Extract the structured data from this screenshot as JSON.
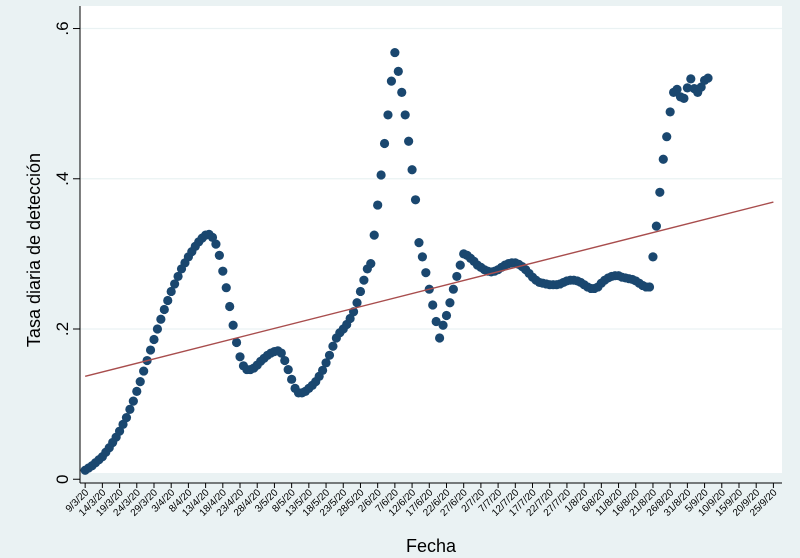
{
  "chart_data": {
    "type": "scatter",
    "title": "",
    "xlabel": "Fecha",
    "ylabel": "Tasa diaria de detección",
    "y_ticks": [
      {
        "value": 0.0,
        "label": "0"
      },
      {
        "value": 0.2,
        "label": ".2"
      },
      {
        "value": 0.4,
        "label": ".4"
      },
      {
        "value": 0.6,
        "label": ".6"
      }
    ],
    "ylim": [
      -0.005,
      0.63
    ],
    "xlim": [
      -1.5,
      202.5
    ],
    "grid": "horizontal",
    "x_tick_labels": [
      "9/3/20",
      "14/3/20",
      "19/3/20",
      "24/3/20",
      "29/3/20",
      "3/4/20",
      "8/4/20",
      "13/4/20",
      "18/4/20",
      "23/4/20",
      "28/4/20",
      "3/5/20",
      "8/5/20",
      "13/5/20",
      "18/5/20",
      "23/5/20",
      "28/5/20",
      "2/6/20",
      "7/6/20",
      "12/6/20",
      "17/6/20",
      "22/6/20",
      "27/6/20",
      "2/7/20",
      "7/7/20",
      "12/7/20",
      "17/7/20",
      "22/7/20",
      "27/7/20",
      "1/8/20",
      "6/8/20",
      "11/8/20",
      "16/8/20",
      "21/8/20",
      "26/8/20",
      "31/8/20",
      "5/9/20",
      "10/9/20",
      "15/9/20",
      "20/9/20",
      "25/9/20"
    ],
    "x_tick_step": 5,
    "series": [
      {
        "kind": "points",
        "color": "#1a476f",
        "x_start": 0,
        "values": [
          0.012,
          0.015,
          0.018,
          0.022,
          0.026,
          0.03,
          0.036,
          0.042,
          0.049,
          0.056,
          0.064,
          0.073,
          0.082,
          0.093,
          0.104,
          0.117,
          0.13,
          0.144,
          0.158,
          0.172,
          0.186,
          0.2,
          0.213,
          0.226,
          0.238,
          0.25,
          0.26,
          0.27,
          0.28,
          0.288,
          0.296,
          0.303,
          0.31,
          0.316,
          0.321,
          0.325,
          0.326,
          0.322,
          0.313,
          0.298,
          0.277,
          0.255,
          0.23,
          0.205,
          0.182,
          0.163,
          0.151,
          0.146,
          0.146,
          0.148,
          0.152,
          0.157,
          0.161,
          0.165,
          0.168,
          0.17,
          0.171,
          0.168,
          0.158,
          0.146,
          0.133,
          0.121,
          0.115,
          0.115,
          0.117,
          0.121,
          0.125,
          0.13,
          0.137,
          0.145,
          0.155,
          0.165,
          0.177,
          0.188,
          0.195,
          0.2,
          0.206,
          0.214,
          0.223,
          0.235,
          0.25,
          0.265,
          0.28,
          0.287,
          0.325,
          0.365,
          0.405,
          0.447,
          0.485,
          0.53,
          0.568,
          0.543,
          0.515,
          0.485,
          0.45,
          0.412,
          0.372,
          0.315,
          0.296,
          0.275,
          0.253,
          0.232,
          0.21,
          0.188,
          0.205,
          0.218,
          0.235,
          0.253,
          0.27,
          0.285,
          0.3,
          0.298,
          0.294,
          0.29,
          0.285,
          0.282,
          0.279,
          0.277,
          0.276,
          0.277,
          0.279,
          0.282,
          0.285,
          0.287,
          0.288,
          0.288,
          0.286,
          0.283,
          0.279,
          0.274,
          0.269,
          0.265,
          0.262,
          0.261,
          0.26,
          0.259,
          0.259,
          0.259,
          0.26,
          0.262,
          0.264,
          0.265,
          0.265,
          0.264,
          0.262,
          0.259,
          0.256,
          0.254,
          0.254,
          0.256,
          0.261,
          0.265,
          0.268,
          0.27,
          0.271,
          0.271,
          0.269,
          0.268,
          0.267,
          0.266,
          0.264,
          0.261,
          0.258,
          0.256,
          0.256,
          0.296,
          0.337,
          0.382,
          0.426,
          0.456,
          0.489,
          0.515,
          0.519,
          0.509,
          0.507,
          0.521,
          0.533,
          0.52,
          0.515,
          0.522,
          0.531,
          0.534
        ]
      },
      {
        "kind": "line",
        "color": "#a84d4d",
        "x": [
          0,
          200
        ],
        "y": [
          0.137,
          0.369
        ]
      }
    ]
  }
}
